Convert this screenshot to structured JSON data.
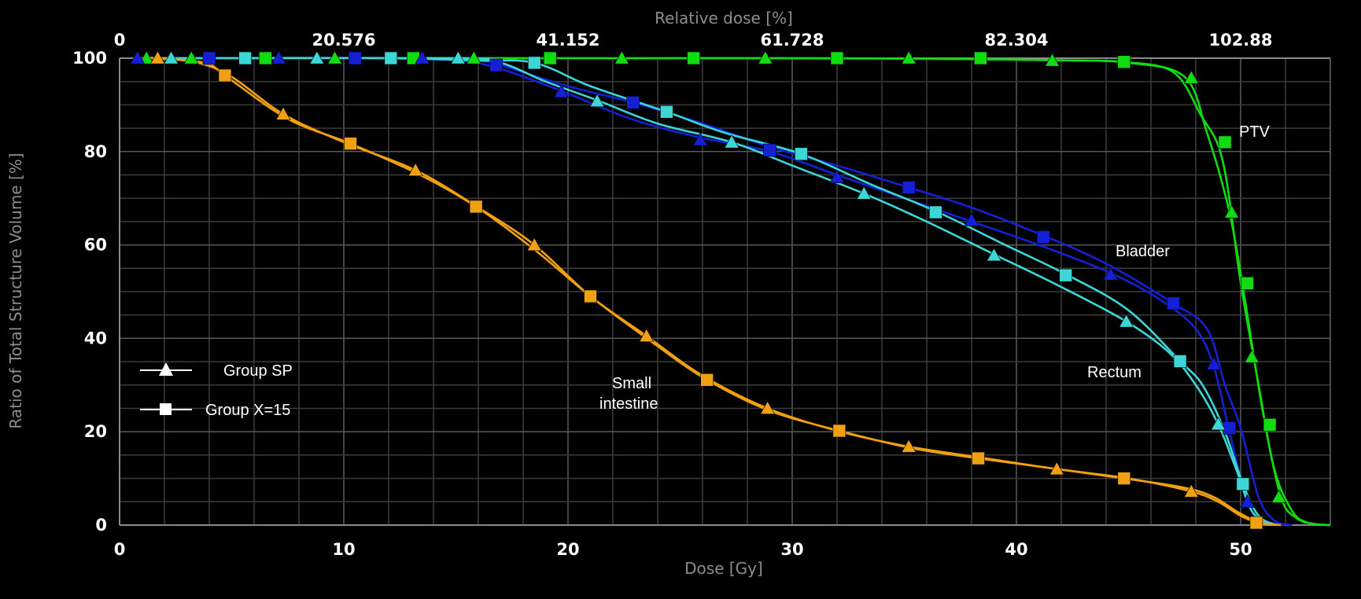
{
  "chart_data": {
    "type": "line",
    "title": "",
    "xlabel": "Dose [Gy]",
    "ylabel": "Ratio of Total Structure Volume [%]",
    "top_axis_label": "Relative dose [%]",
    "xlim": [
      0,
      54
    ],
    "ylim": [
      0,
      100
    ],
    "x_ticks": [
      "0",
      "10",
      "20",
      "30",
      "40",
      "50"
    ],
    "y_ticks": [
      "0",
      "20",
      "40",
      "60",
      "80",
      "100"
    ],
    "top_ticks": [
      "0",
      "20.576",
      "41.152",
      "61.728",
      "82.304",
      "102.88"
    ],
    "grid": true,
    "legend_position": "left",
    "legend": [
      {
        "label": "Group SP",
        "marker": "triangle"
      },
      {
        "label": "Group X=15",
        "marker": "square"
      }
    ],
    "annotations": [
      "PTV",
      "Bladder",
      "Rectum",
      "Small intestine"
    ],
    "colors": {
      "ptv": "#10dc10",
      "bladder": "#1420d6",
      "rectum": "#3cd6d6",
      "small_intestine": "#f0a010",
      "grid": "#4a4a4a",
      "axis_title": "#8c8c8c"
    },
    "series": [
      {
        "structure": "PTV",
        "group": "Group SP",
        "color": "#10dc10",
        "marker": "triangle",
        "x": [
          1,
          2.6,
          3.3,
          8.6,
          9.6,
          15.8,
          22.4,
          28.8,
          35.2,
          41.6,
          45,
          47.5,
          48.5,
          49.5,
          50.2,
          51,
          51.8,
          52.5,
          53.2,
          54
        ],
        "y": [
          100,
          100,
          100,
          100,
          100,
          100,
          100,
          100,
          99.9,
          99.6,
          99,
          96,
          84,
          67,
          48,
          24,
          6,
          1.5,
          0.3,
          0
        ]
      },
      {
        "structure": "PTV",
        "group": "Group X=15",
        "color": "#10dc10",
        "marker": "square",
        "x": [
          1,
          5.5,
          6.5,
          12.4,
          13.1,
          19.2,
          25.6,
          32,
          38.4,
          42.5,
          44.8,
          47,
          48.2,
          49.2,
          50,
          50.8,
          51.5,
          52.3,
          53,
          54
        ],
        "y": [
          100,
          100,
          100,
          100,
          100,
          100,
          100,
          100,
          99.8,
          99.5,
          99.2,
          97,
          88,
          78,
          52,
          30,
          12,
          3,
          0.5,
          0
        ]
      },
      {
        "structure": "Bladder",
        "group": "Group SP",
        "color": "#1420d6",
        "marker": "triangle",
        "x": [
          0.8,
          7.1,
          13.5,
          15,
          16.8,
          19.7,
          22.8,
          25.9,
          29,
          32,
          35,
          38,
          41,
          44.2,
          46.5,
          48,
          48.8,
          49.5,
          50.3,
          51,
          52
        ],
        "y": [
          100,
          100,
          100,
          99.6,
          98,
          93,
          87,
          83,
          80,
          75,
          70,
          65,
          60,
          54,
          48,
          42,
          34,
          20,
          5,
          1,
          0
        ]
      },
      {
        "structure": "Bladder",
        "group": "Group X=15",
        "color": "#1420d6",
        "marker": "square",
        "x": [
          0.8,
          4,
          10.5,
          16,
          17,
          20,
          22.9,
          26,
          29,
          32,
          35.2,
          38,
          41.2,
          44,
          47,
          48.5,
          49.3,
          50,
          50.8,
          51.5,
          52.3
        ],
        "y": [
          100,
          100,
          100,
          99.4,
          98.5,
          94,
          90.5,
          86,
          81,
          77,
          72.3,
          68,
          62,
          56,
          47.5,
          42,
          30,
          20.8,
          6,
          1,
          0
        ]
      },
      {
        "structure": "Rectum",
        "group": "Group SP",
        "color": "#3cd6d6",
        "marker": "triangle",
        "x": [
          0.8,
          2.3,
          15.1,
          17,
          19,
          21.3,
          24,
          27.3,
          30,
          33.2,
          36,
          39,
          42,
          44.9,
          46.8,
          48,
          49,
          49.8,
          50.5,
          51.3
        ],
        "y": [
          100,
          100,
          100,
          99,
          95,
          91,
          86,
          82,
          77,
          71,
          65,
          58,
          51,
          43.6,
          37,
          30,
          21.6,
          12,
          3,
          0
        ]
      },
      {
        "structure": "Rectum",
        "group": "Group X=15",
        "color": "#3cd6d6",
        "marker": "square",
        "x": [
          0.8,
          5.6,
          12.1,
          16,
          18.5,
          21,
          24.4,
          27,
          30.4,
          33.5,
          36.5,
          39.5,
          42.3,
          45,
          47.3,
          48.3,
          49.3,
          50.1,
          50.8,
          51.6
        ],
        "y": [
          100,
          100,
          100,
          99.5,
          99,
          94,
          88.5,
          84,
          79.5,
          73,
          67,
          60,
          53.5,
          46,
          35.1,
          30,
          20,
          8.8,
          2,
          0
        ]
      },
      {
        "structure": "Small intestine",
        "group": "Group SP",
        "color": "#f0a010",
        "marker": "triangle",
        "x": [
          1,
          1.7,
          3.5,
          5,
          7.3,
          10,
          13.2,
          16,
          18.5,
          21,
          23.5,
          26,
          28.9,
          32,
          35.2,
          38.5,
          41.8,
          45,
          47.8,
          49,
          50,
          50.8,
          51.8
        ],
        "y": [
          100,
          100,
          99,
          96,
          88,
          82,
          76,
          68,
          60,
          49,
          40.5,
          32,
          25,
          20.2,
          16.8,
          14.4,
          12,
          10,
          7.2,
          5,
          2,
          0.5,
          0
        ]
      },
      {
        "structure": "Small intestine",
        "group": "Group X=15",
        "color": "#f0a010",
        "marker": "square",
        "x": [
          1,
          1.5,
          3.8,
          4.7,
          7.5,
          10.3,
          13.4,
          15.9,
          18.5,
          21,
          23.8,
          26.2,
          29,
          32.1,
          35.3,
          38.3,
          41.5,
          44.8,
          47.5,
          48.8,
          49.8,
          50.7,
          51.5
        ],
        "y": [
          100,
          100,
          99,
          96.3,
          87,
          81.7,
          75,
          68.2,
          59,
          49,
          39,
          31.1,
          24.5,
          20.2,
          16.5,
          14.3,
          12.2,
          10,
          8,
          6,
          3,
          0.8,
          0
        ]
      }
    ],
    "markers": [
      {
        "structure": "PTV",
        "marker": "triangle",
        "x": [
          1.2,
          3.2,
          9.6,
          15.8,
          22.4,
          28.8,
          35.2,
          41.6,
          47.8,
          49.6,
          50.5,
          51.7
        ],
        "y": [
          100,
          100,
          100,
          100,
          100,
          100,
          100,
          99.5,
          95.8,
          67,
          36,
          6
        ]
      },
      {
        "structure": "PTV",
        "marker": "square",
        "x": [
          6.5,
          13.1,
          19.2,
          25.6,
          32,
          38.4,
          44.8,
          49.3,
          50.3,
          51.3
        ],
        "y": [
          100,
          100,
          100,
          100,
          100,
          100,
          99.2,
          82,
          51.8,
          21.5
        ]
      },
      {
        "structure": "Bladder",
        "marker": "triangle",
        "x": [
          0.8,
          7.1,
          13.5,
          19.7,
          25.9,
          32,
          38,
          44.2,
          48.8,
          50.3
        ],
        "y": [
          100,
          100,
          100,
          92.8,
          82.5,
          74.5,
          65.3,
          53.7,
          34.5,
          5
        ]
      },
      {
        "structure": "Bladder",
        "marker": "square",
        "x": [
          4,
          10.5,
          16.8,
          22.9,
          29,
          35.2,
          41.2,
          47,
          49.5
        ],
        "y": [
          100,
          100,
          98.5,
          90.5,
          80.3,
          72.3,
          61.7,
          47.5,
          20.8
        ]
      },
      {
        "structure": "Rectum",
        "marker": "triangle",
        "x": [
          2.3,
          8.8,
          15.1,
          21.3,
          27.3,
          33.2,
          39,
          44.9,
          49
        ],
        "y": [
          100,
          100,
          100,
          90.8,
          82,
          71,
          57.8,
          43.6,
          21.6
        ]
      },
      {
        "structure": "Rectum",
        "marker": "square",
        "x": [
          5.6,
          12.1,
          18.5,
          24.4,
          30.4,
          36.4,
          42.2,
          47.3,
          50.1
        ],
        "y": [
          100,
          100,
          99,
          88.5,
          79.5,
          67,
          53.5,
          35.1,
          8.8
        ]
      },
      {
        "structure": "Small intestine",
        "marker": "triangle",
        "x": [
          1.7,
          7.3,
          13.2,
          18.5,
          23.5,
          28.9,
          35.2,
          41.8,
          47.8
        ],
        "y": [
          100,
          88,
          76,
          60,
          40.5,
          25,
          16.8,
          12,
          7.2
        ]
      },
      {
        "structure": "Small intestine",
        "marker": "square",
        "x": [
          4.7,
          10.3,
          15.9,
          21,
          26.2,
          32.1,
          38.3,
          44.8,
          50.7
        ],
        "y": [
          96.3,
          81.7,
          68.2,
          49,
          31.1,
          20.2,
          14.3,
          10,
          0.5
        ]
      }
    ]
  }
}
